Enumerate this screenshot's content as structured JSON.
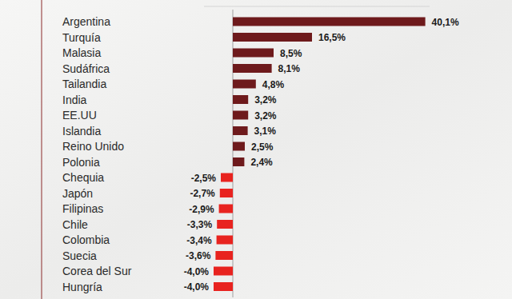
{
  "chart_data": {
    "type": "bar",
    "orientation": "horizontal",
    "data_labels": true,
    "tick_labels": false,
    "grid": false,
    "categories": [
      "Argentina",
      "Turquía",
      "Malasia",
      "Sudáfrica",
      "Tailandia",
      "India",
      "EE.UU",
      "Islandia",
      "Reino Unido",
      "Polonia",
      "Chequia",
      "Japón",
      "Filipinas",
      "Chile",
      "Colombia",
      "Suecia",
      "Corea del Sur",
      "Hungría"
    ],
    "values": [
      40.1,
      16.5,
      8.5,
      8.1,
      4.8,
      3.2,
      3.2,
      3.1,
      2.5,
      2.4,
      -2.5,
      -2.7,
      -2.9,
      -3.3,
      -3.4,
      -3.6,
      -4.0,
      -4.0
    ],
    "value_labels": [
      "40,1%",
      "16,5%",
      "8,5%",
      "8,1%",
      "4,8%",
      "3,2%",
      "3,2%",
      "3,1%",
      "2,5%",
      "2,4%",
      "-2,5%",
      "-2,7%",
      "-2,9%",
      "-3,3%",
      "-3,4%",
      "-3,6%",
      "-4,0%",
      "-4,0%"
    ],
    "colors": [
      "#6e1a1c",
      "#6e1a1c",
      "#6e1a1c",
      "#6e1a1c",
      "#6e1a1c",
      "#6e1a1c",
      "#6e1a1c",
      "#6e1a1c",
      "#6e1a1c",
      "#6e1a1c",
      "#e8231f",
      "#e8231f",
      "#e8231f",
      "#e8231f",
      "#e8231f",
      "#e8231f",
      "#e8231f",
      "#e8231f"
    ],
    "xlim": [
      -6,
      41
    ]
  }
}
